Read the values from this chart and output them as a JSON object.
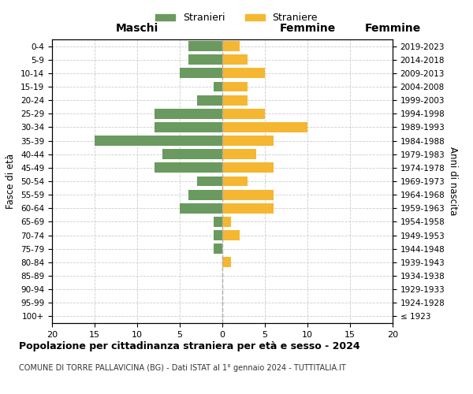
{
  "age_groups": [
    "100+",
    "95-99",
    "90-94",
    "85-89",
    "80-84",
    "75-79",
    "70-74",
    "65-69",
    "60-64",
    "55-59",
    "50-54",
    "45-49",
    "40-44",
    "35-39",
    "30-34",
    "25-29",
    "20-24",
    "15-19",
    "10-14",
    "5-9",
    "0-4"
  ],
  "birth_years": [
    "≤ 1923",
    "1924-1928",
    "1929-1933",
    "1934-1938",
    "1939-1943",
    "1944-1948",
    "1949-1953",
    "1954-1958",
    "1959-1963",
    "1964-1968",
    "1969-1973",
    "1974-1978",
    "1979-1983",
    "1984-1988",
    "1989-1993",
    "1994-1998",
    "1999-2003",
    "2004-2008",
    "2009-2013",
    "2014-2018",
    "2019-2023"
  ],
  "maschi": [
    0,
    0,
    0,
    0,
    0,
    1,
    1,
    1,
    5,
    4,
    3,
    8,
    7,
    15,
    8,
    8,
    3,
    1,
    5,
    4,
    4
  ],
  "femmine": [
    0,
    0,
    0,
    0,
    1,
    0,
    2,
    1,
    6,
    6,
    3,
    6,
    4,
    6,
    10,
    5,
    3,
    3,
    5,
    3,
    2
  ],
  "color_maschi": "#6a9a5f",
  "color_femmine": "#f5b731",
  "xlim": 20,
  "title": "Popolazione per cittadinanza straniera per età e sesso - 2024",
  "subtitle": "COMUNE DI TORRE PALLAVICINA (BG) - Dati ISTAT al 1° gennaio 2024 - TUTTITALIA.IT",
  "label_maschi": "Stranieri",
  "label_femmine": "Straniere",
  "xlabel_left": "Maschi",
  "xlabel_right": "Femmine",
  "ylabel_left": "Fasce di età",
  "ylabel_right": "Anni di nascita",
  "bg_color": "#ffffff",
  "grid_color": "#cccccc"
}
